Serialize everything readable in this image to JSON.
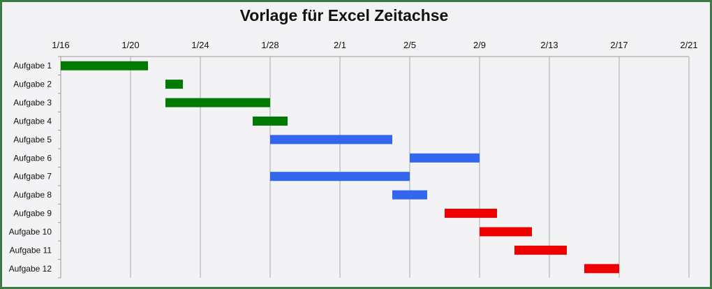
{
  "chart_data": {
    "type": "gantt",
    "title": "Vorlage für Excel Zeitachse",
    "x_axis": {
      "position": "top",
      "ticks": [
        "1/16",
        "1/20",
        "1/24",
        "1/28",
        "2/1",
        "2/5",
        "2/9",
        "2/13",
        "2/17",
        "2/21"
      ],
      "range": [
        "1/16",
        "2/21"
      ],
      "grid": true
    },
    "tasks": [
      {
        "name": "Aufgabe 1",
        "start": "1/16",
        "end": "1/21",
        "color": "#007a00"
      },
      {
        "name": "Aufgabe 2",
        "start": "1/22",
        "end": "1/23",
        "color": "#007a00"
      },
      {
        "name": "Aufgabe 3",
        "start": "1/22",
        "end": "1/28",
        "color": "#007a00"
      },
      {
        "name": "Aufgabe 4",
        "start": "1/27",
        "end": "1/29",
        "color": "#007a00"
      },
      {
        "name": "Aufgabe 5",
        "start": "1/28",
        "end": "2/4",
        "color": "#3366ee"
      },
      {
        "name": "Aufgabe 6",
        "start": "2/5",
        "end": "2/9",
        "color": "#3366ee"
      },
      {
        "name": "Aufgabe 7",
        "start": "1/28",
        "end": "2/5",
        "color": "#3366ee"
      },
      {
        "name": "Aufgabe 8",
        "start": "2/4",
        "end": "2/6",
        "color": "#3366ee"
      },
      {
        "name": "Aufgabe 9",
        "start": "2/7",
        "end": "2/10",
        "color": "#ee0000"
      },
      {
        "name": "Aufgabe 10",
        "start": "2/9",
        "end": "2/12",
        "color": "#ee0000"
      },
      {
        "name": "Aufgabe 11",
        "start": "2/11",
        "end": "2/14",
        "color": "#ee0000"
      },
      {
        "name": "Aufgabe 12",
        "start": "2/15",
        "end": "2/17",
        "color": "#ee0000"
      }
    ]
  }
}
